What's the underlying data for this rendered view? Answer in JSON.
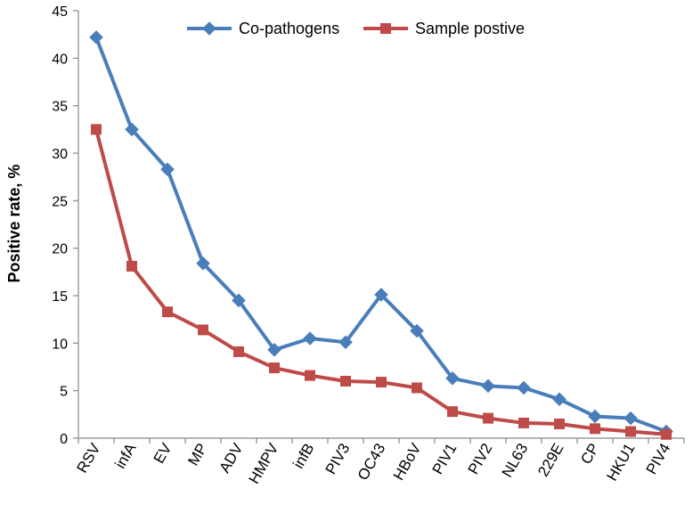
{
  "chart_data": {
    "type": "line",
    "title": "",
    "xlabel": "",
    "ylabel": "Positive rate, %",
    "ylim": [
      0,
      45
    ],
    "yticks": [
      0,
      5,
      10,
      15,
      20,
      25,
      30,
      35,
      40,
      45
    ],
    "ytick_labels": [
      "0",
      "5",
      "10",
      "15",
      "20",
      "25",
      "30",
      "35",
      "40",
      "45"
    ],
    "grid": false,
    "legend_position": "top",
    "categories": [
      "RSV",
      "infA",
      "EV",
      "MP",
      "ADV",
      "HMPV",
      "infB",
      "PIV3",
      "OC43",
      "HBoV",
      "PIV1",
      "PIV2",
      "NL63",
      "229E",
      "CP",
      "HKU1",
      "PIV4"
    ],
    "series": [
      {
        "name": "Co-pathogens",
        "color": "#4a7ebb",
        "marker": "diamond",
        "values": [
          42.2,
          32.5,
          28.3,
          18.4,
          14.5,
          9.3,
          10.5,
          10.1,
          15.1,
          11.3,
          6.3,
          5.5,
          5.3,
          4.1,
          2.3,
          2.1,
          0.7
        ]
      },
      {
        "name": "Sample postive",
        "color": "#be4b48",
        "marker": "square",
        "values": [
          32.5,
          18.1,
          13.3,
          11.4,
          9.1,
          7.4,
          6.6,
          6.0,
          5.9,
          5.3,
          2.8,
          2.1,
          1.6,
          1.5,
          1.0,
          0.7,
          0.4
        ]
      }
    ]
  }
}
